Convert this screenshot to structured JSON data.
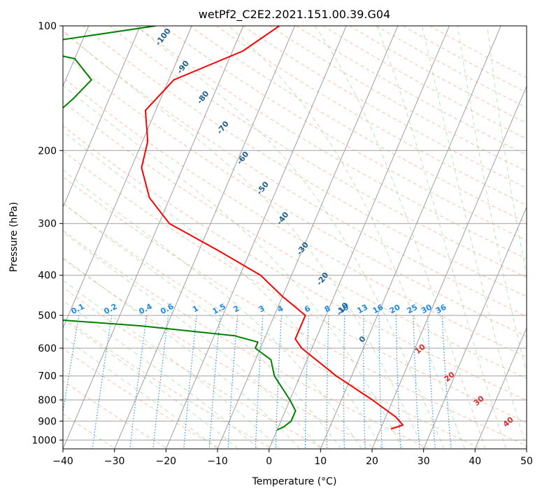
{
  "chart_data": {
    "type": "line",
    "title": "wetPf2_C2E2.2021.151.00.39.G04",
    "xlabel": "Temperature (°C)",
    "ylabel": "Pressure (hPa)",
    "xlim": [
      -40,
      50
    ],
    "ylim": [
      1050,
      100
    ],
    "y_scale": "log",
    "grid": true,
    "x_ticks": [
      -40,
      -30,
      -20,
      -10,
      0,
      10,
      20,
      30,
      40,
      50
    ],
    "y_ticks": [
      100,
      200,
      300,
      400,
      500,
      600,
      700,
      800,
      900,
      1000
    ],
    "series": [
      {
        "color": "#ff0000",
        "points": [
          [
            100,
            -33
          ],
          [
            115,
            -38
          ],
          [
            135,
            -49
          ],
          [
            160,
            -52
          ],
          [
            190,
            -49
          ],
          [
            220,
            -48
          ],
          [
            260,
            -44
          ],
          [
            300,
            -38
          ],
          [
            350,
            -26
          ],
          [
            400,
            -16
          ],
          [
            450,
            -10
          ],
          [
            500,
            -4
          ],
          [
            530,
            -4
          ],
          [
            570,
            -4
          ],
          [
            600,
            -2
          ],
          [
            700,
            7
          ],
          [
            800,
            16
          ],
          [
            880,
            22
          ],
          [
            920,
            24
          ],
          [
            940,
            22
          ]
        ]
      },
      {
        "color": "#008000",
        "points": [
          [
            100,
            -57
          ],
          [
            110,
            -78
          ],
          [
            113,
            -81
          ],
          [
            120,
            -70
          ],
          [
            135,
            -65
          ],
          [
            150,
            -67
          ],
          [
            170,
            -70
          ],
          [
            200,
            -72
          ],
          [
            220,
            -72
          ],
          [
            240,
            -68
          ],
          [
            260,
            -67
          ],
          [
            290,
            -62
          ],
          [
            320,
            -63
          ],
          [
            350,
            -66
          ],
          [
            380,
            -67
          ],
          [
            400,
            -65
          ],
          [
            430,
            -60
          ],
          [
            470,
            -57
          ],
          [
            505,
            -55
          ],
          [
            510,
            -54
          ],
          [
            530,
            -35
          ],
          [
            560,
            -16
          ],
          [
            580,
            -11
          ],
          [
            600,
            -11
          ],
          [
            640,
            -7
          ],
          [
            700,
            -5
          ],
          [
            800,
            0
          ],
          [
            850,
            2
          ],
          [
            900,
            2
          ],
          [
            930,
            1
          ],
          [
            945,
            0
          ]
        ]
      }
    ],
    "mixing_ratio_labels": [
      "0.1",
      "0.2",
      "0.4",
      "0.6",
      "1",
      "1.5",
      "2",
      "3",
      "4",
      "6",
      "8",
      "10",
      "13",
      "16",
      "20",
      "25",
      "30",
      "36"
    ],
    "mixing_ratio_values": [
      0.1,
      0.2,
      0.4,
      0.6,
      1,
      1.5,
      2,
      3,
      4,
      6,
      8,
      10,
      13,
      16,
      20,
      25,
      30,
      36
    ],
    "dry_adiabat_labels": [
      "-100",
      "-90",
      "-80",
      "-70",
      "-60",
      "-50",
      "-40",
      "-30",
      "-20",
      "-10",
      "0"
    ],
    "dry_adiabat_values": [
      -100,
      -90,
      -80,
      -70,
      -60,
      -50,
      -40,
      -30,
      -20,
      -10,
      0
    ],
    "moist_adiabat_labels": [
      "10",
      "20",
      "30",
      "40"
    ],
    "moist_adiabat_values": [
      10,
      20,
      30,
      40
    ]
  }
}
